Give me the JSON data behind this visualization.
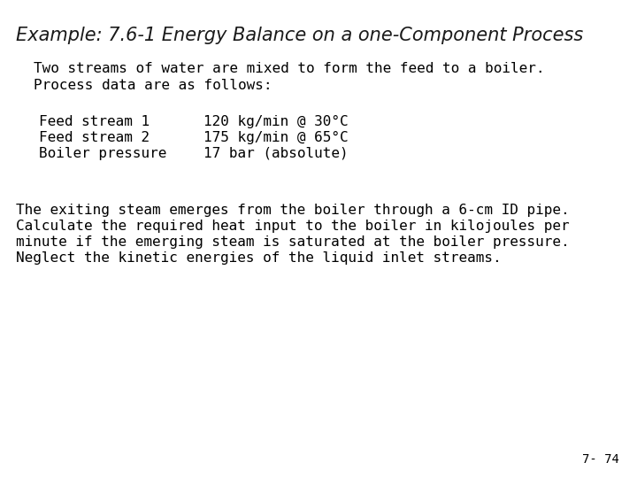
{
  "title": "Example: 7.6-1 Energy Balance on a one-Component Process",
  "title_color": "#1a1a1a",
  "title_fontsize": 15,
  "background_color": "#ffffff",
  "para1_line1": "Two streams of water are mixed to form the feed to a boiler.",
  "para1_line2": "Process data are as follows:",
  "table_left_col": [
    "Feed stream 1",
    "Feed stream 2",
    "Boiler pressure"
  ],
  "table_right_col": [
    "120 kg/min @ 30°C",
    "175 kg/min @ 65°C",
    "17 bar (absolute)"
  ],
  "para2_lines": [
    "The exiting steam emerges from the boiler through a 6-cm ID pipe.",
    "Calculate the required heat input to the boiler in kilojoules per",
    "minute if the emerging steam is saturated at the boiler pressure.",
    "Neglect the kinetic energies of the liquid inlet streams."
  ],
  "page_number": "7- 74",
  "body_fontsize": 11.5,
  "table_fontsize": 11.5,
  "page_num_fontsize": 10
}
